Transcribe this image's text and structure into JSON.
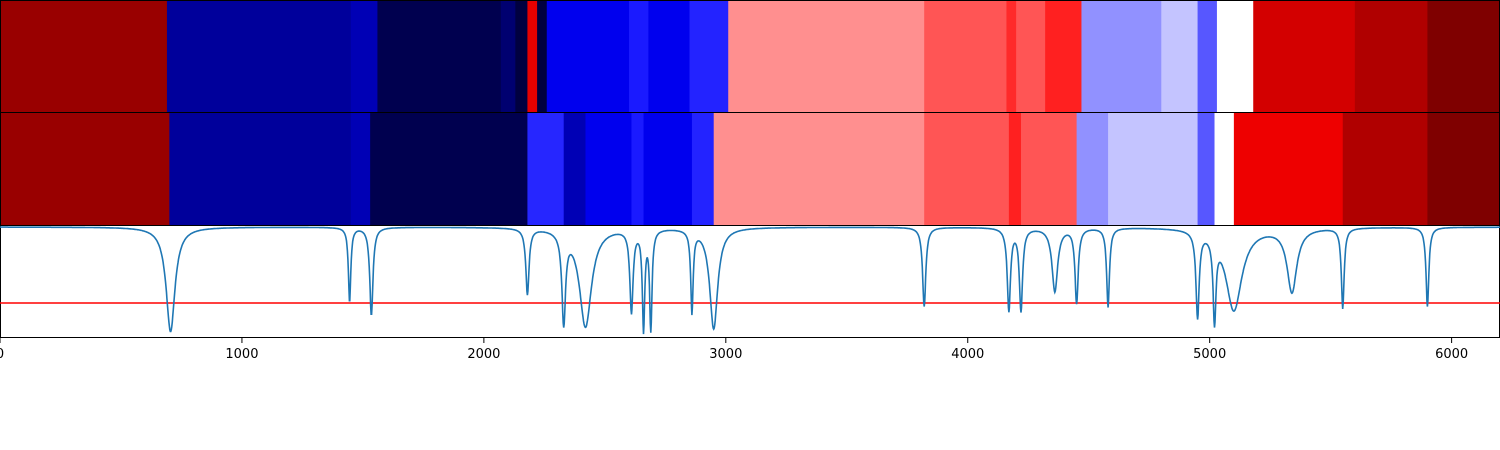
{
  "chart_data": {
    "type": "heatmap",
    "title": "",
    "xlabel": "",
    "ylabel": "",
    "xlim": [
      0,
      6200
    ],
    "xticks": [
      0,
      1000,
      2000,
      3000,
      4000,
      5000,
      6000
    ],
    "xtick_labels": [
      "0",
      "1000",
      "2000",
      "3000",
      "4000",
      "5000",
      "6000"
    ],
    "heatmap_rows": [
      {
        "segments": [
          {
            "x0": 0,
            "x1": 690,
            "color": "#990000"
          },
          {
            "x0": 690,
            "x1": 1450,
            "color": "#00009b"
          },
          {
            "x0": 1450,
            "x1": 1560,
            "color": "#0000b5"
          },
          {
            "x0": 1560,
            "x1": 2070,
            "color": "#00004f"
          },
          {
            "x0": 2070,
            "x1": 2130,
            "color": "#000070"
          },
          {
            "x0": 2130,
            "x1": 2180,
            "color": "#000040"
          },
          {
            "x0": 2180,
            "x1": 2220,
            "color": "#e60000"
          },
          {
            "x0": 2220,
            "x1": 2260,
            "color": "#000040"
          },
          {
            "x0": 2260,
            "x1": 2600,
            "color": "#0000ee"
          },
          {
            "x0": 2600,
            "x1": 2680,
            "color": "#1a1aff"
          },
          {
            "x0": 2680,
            "x1": 2850,
            "color": "#0000ee"
          },
          {
            "x0": 2850,
            "x1": 3010,
            "color": "#2323ff"
          },
          {
            "x0": 3010,
            "x1": 3820,
            "color": "#ff8f8f"
          },
          {
            "x0": 3820,
            "x1": 4160,
            "color": "#ff5555"
          },
          {
            "x0": 4160,
            "x1": 4200,
            "color": "#ff2a2a"
          },
          {
            "x0": 4200,
            "x1": 4320,
            "color": "#ff5555"
          },
          {
            "x0": 4320,
            "x1": 4470,
            "color": "#ff2020"
          },
          {
            "x0": 4470,
            "x1": 4800,
            "color": "#9191ff"
          },
          {
            "x0": 4800,
            "x1": 4950,
            "color": "#c4c4ff"
          },
          {
            "x0": 4950,
            "x1": 5030,
            "color": "#5757ff"
          },
          {
            "x0": 5030,
            "x1": 5180,
            "color": "#ffffff"
          },
          {
            "x0": 5180,
            "x1": 5600,
            "color": "#d30000"
          },
          {
            "x0": 5600,
            "x1": 5900,
            "color": "#b00000"
          },
          {
            "x0": 5900,
            "x1": 6200,
            "color": "#7f0000"
          }
        ]
      },
      {
        "segments": [
          {
            "x0": 0,
            "x1": 700,
            "color": "#990000"
          },
          {
            "x0": 700,
            "x1": 1450,
            "color": "#00009b"
          },
          {
            "x0": 1450,
            "x1": 1530,
            "color": "#0000b5"
          },
          {
            "x0": 1530,
            "x1": 2180,
            "color": "#00004f"
          },
          {
            "x0": 2180,
            "x1": 2330,
            "color": "#2626ff"
          },
          {
            "x0": 2330,
            "x1": 2420,
            "color": "#0000b5"
          },
          {
            "x0": 2420,
            "x1": 2610,
            "color": "#0000ee"
          },
          {
            "x0": 2610,
            "x1": 2660,
            "color": "#1a1aff"
          },
          {
            "x0": 2660,
            "x1": 2860,
            "color": "#0000ee"
          },
          {
            "x0": 2860,
            "x1": 2950,
            "color": "#2323ff"
          },
          {
            "x0": 2950,
            "x1": 3820,
            "color": "#ff8f8f"
          },
          {
            "x0": 3820,
            "x1": 4170,
            "color": "#ff5555"
          },
          {
            "x0": 4170,
            "x1": 4220,
            "color": "#ff2020"
          },
          {
            "x0": 4220,
            "x1": 4450,
            "color": "#ff5555"
          },
          {
            "x0": 4450,
            "x1": 4580,
            "color": "#9191ff"
          },
          {
            "x0": 4580,
            "x1": 4950,
            "color": "#c4c4ff"
          },
          {
            "x0": 4950,
            "x1": 5020,
            "color": "#5757ff"
          },
          {
            "x0": 5020,
            "x1": 5100,
            "color": "#ffffff"
          },
          {
            "x0": 5100,
            "x1": 5550,
            "color": "#ee0000"
          },
          {
            "x0": 5550,
            "x1": 5900,
            "color": "#b00000"
          },
          {
            "x0": 5900,
            "x1": 6200,
            "color": "#7f0000"
          }
        ]
      }
    ],
    "spectrum": {
      "color": "#1f77b4",
      "baseline": 1.0,
      "ylim": [
        0,
        1.0
      ],
      "peaks": [
        {
          "x": 705,
          "depth": 0.95,
          "width": 22
        },
        {
          "x": 1445,
          "depth": 0.68,
          "width": 6
        },
        {
          "x": 1535,
          "depth": 0.8,
          "width": 8
        },
        {
          "x": 2180,
          "depth": 0.6,
          "width": 8
        },
        {
          "x": 2330,
          "depth": 0.82,
          "width": 9
        },
        {
          "x": 2420,
          "depth": 0.9,
          "width": 30
        },
        {
          "x": 2610,
          "depth": 0.75,
          "width": 8
        },
        {
          "x": 2660,
          "depth": 0.9,
          "width": 6
        },
        {
          "x": 2690,
          "depth": 0.9,
          "width": 6
        },
        {
          "x": 2860,
          "depth": 0.75,
          "width": 6
        },
        {
          "x": 2950,
          "depth": 0.92,
          "width": 20
        },
        {
          "x": 3820,
          "depth": 0.72,
          "width": 8
        },
        {
          "x": 4170,
          "depth": 0.75,
          "width": 8
        },
        {
          "x": 4220,
          "depth": 0.75,
          "width": 8
        },
        {
          "x": 4360,
          "depth": 0.58,
          "width": 14
        },
        {
          "x": 4450,
          "depth": 0.68,
          "width": 8
        },
        {
          "x": 4580,
          "depth": 0.72,
          "width": 7
        },
        {
          "x": 4950,
          "depth": 0.78,
          "width": 8
        },
        {
          "x": 5020,
          "depth": 0.75,
          "width": 7
        },
        {
          "x": 5100,
          "depth": 0.75,
          "width": 40
        },
        {
          "x": 5340,
          "depth": 0.58,
          "width": 24
        },
        {
          "x": 5550,
          "depth": 0.73,
          "width": 7
        },
        {
          "x": 5900,
          "depth": 0.72,
          "width": 7
        }
      ]
    },
    "threshold": {
      "y": 0.0,
      "color": "#ff0000"
    }
  }
}
